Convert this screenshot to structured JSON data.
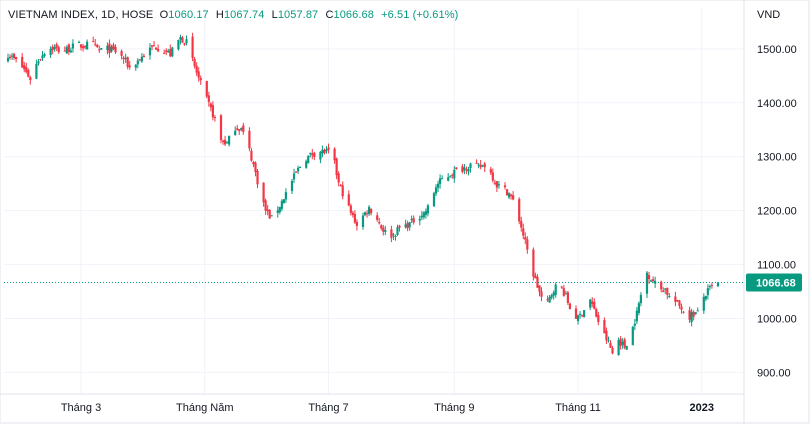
{
  "header": {
    "symbol_label": "VIETNAM INDEX, 1D, HOSE",
    "open_key": "O",
    "open_value": "1060.17",
    "high_key": "H",
    "high_value": "1067.74",
    "low_key": "L",
    "low_value": "1057.87",
    "close_key": "C",
    "close_value": "1066.68",
    "change_text": "+6.51 (+0.61%)"
  },
  "currency": "VND",
  "colors": {
    "up": "#089981",
    "down": "#f23645",
    "price_line": "#089981",
    "grid": "#f0f3fa",
    "axis": "#e0e3eb"
  },
  "last_price_label": "1066.68",
  "chart_data": {
    "type": "candlestick",
    "title": "",
    "xlabel": "",
    "ylabel": "",
    "ylim": [
      860,
      1535
    ],
    "x_range": [
      "2022-01-24",
      "2023-01-09"
    ],
    "y_ticks": [
      {
        "value": 1500,
        "label": "1500.00"
      },
      {
        "value": 1400,
        "label": "1400.00"
      },
      {
        "value": 1300,
        "label": "1300.00"
      },
      {
        "value": 1200,
        "label": "1200.00"
      },
      {
        "value": 1100,
        "label": "1100.00"
      },
      {
        "value": 1000,
        "label": "1000.00"
      },
      {
        "value": 900,
        "label": "900.00"
      }
    ],
    "x_ticks": [
      {
        "date": "2022-03-01",
        "label": "Tháng 3"
      },
      {
        "date": "2022-05-01",
        "label": "Tháng Năm"
      },
      {
        "date": "2022-07-01",
        "label": "Tháng 7"
      },
      {
        "date": "2022-09-01",
        "label": "Tháng 9"
      },
      {
        "date": "2022-11-01",
        "label": "Tháng 11"
      },
      {
        "date": "2023-01-01",
        "label": "2023",
        "bold": true
      }
    ],
    "grid": true,
    "close_anchors": [
      [
        "2022-01-24",
        1490
      ],
      [
        "2022-01-28",
        1478
      ],
      [
        "2022-02-01",
        1462
      ],
      [
        "2022-02-04",
        1445
      ],
      [
        "2022-02-08",
        1480
      ],
      [
        "2022-02-12",
        1500
      ],
      [
        "2022-02-16",
        1502
      ],
      [
        "2022-02-19",
        1495
      ],
      [
        "2022-02-23",
        1500
      ],
      [
        "2022-02-27",
        1508
      ],
      [
        "2022-03-02",
        1505
      ],
      [
        "2022-03-06",
        1510
      ],
      [
        "2022-03-10",
        1498
      ],
      [
        "2022-03-14",
        1500
      ],
      [
        "2022-03-18",
        1495
      ],
      [
        "2022-03-22",
        1482
      ],
      [
        "2022-03-25",
        1465
      ],
      [
        "2022-03-29",
        1478
      ],
      [
        "2022-04-02",
        1492
      ],
      [
        "2022-04-06",
        1505
      ],
      [
        "2022-04-10",
        1500
      ],
      [
        "2022-04-14",
        1490
      ],
      [
        "2022-04-17",
        1510
      ],
      [
        "2022-04-19",
        1520
      ],
      [
        "2022-04-22",
        1512
      ],
      [
        "2022-04-25",
        1478
      ],
      [
        "2022-04-28",
        1445
      ],
      [
        "2022-05-02",
        1405
      ],
      [
        "2022-05-06",
        1370
      ],
      [
        "2022-05-09",
        1330
      ],
      [
        "2022-05-12",
        1325
      ],
      [
        "2022-05-16",
        1355
      ],
      [
        "2022-05-19",
        1352
      ],
      [
        "2022-05-22",
        1325
      ],
      [
        "2022-05-25",
        1285
      ],
      [
        "2022-05-28",
        1240
      ],
      [
        "2022-05-31",
        1200
      ],
      [
        "2022-06-03",
        1185
      ],
      [
        "2022-06-07",
        1210
      ],
      [
        "2022-06-11",
        1240
      ],
      [
        "2022-06-15",
        1270
      ],
      [
        "2022-06-19",
        1295
      ],
      [
        "2022-06-23",
        1305
      ],
      [
        "2022-06-27",
        1310
      ],
      [
        "2022-07-01",
        1308
      ],
      [
        "2022-07-03",
        1305
      ],
      [
        "2022-07-06",
        1250
      ],
      [
        "2022-07-09",
        1225
      ],
      [
        "2022-07-12",
        1195
      ],
      [
        "2022-07-15",
        1175
      ],
      [
        "2022-07-18",
        1190
      ],
      [
        "2022-07-21",
        1205
      ],
      [
        "2022-07-24",
        1192
      ],
      [
        "2022-07-27",
        1170
      ],
      [
        "2022-07-30",
        1155
      ],
      [
        "2022-08-02",
        1155
      ],
      [
        "2022-08-05",
        1168
      ],
      [
        "2022-08-08",
        1172
      ],
      [
        "2022-08-11",
        1178
      ],
      [
        "2022-08-14",
        1190
      ],
      [
        "2022-08-17",
        1195
      ],
      [
        "2022-08-20",
        1210
      ],
      [
        "2022-08-23",
        1245
      ],
      [
        "2022-08-26",
        1258
      ],
      [
        "2022-08-29",
        1265
      ],
      [
        "2022-09-01",
        1272
      ],
      [
        "2022-09-05",
        1278
      ],
      [
        "2022-09-09",
        1285
      ],
      [
        "2022-09-13",
        1280
      ],
      [
        "2022-09-16",
        1285
      ],
      [
        "2022-09-19",
        1270
      ],
      [
        "2022-09-22",
        1248
      ],
      [
        "2022-09-25",
        1242
      ],
      [
        "2022-09-28",
        1232
      ],
      [
        "2022-10-01",
        1210
      ],
      [
        "2022-10-04",
        1170
      ],
      [
        "2022-10-07",
        1125
      ],
      [
        "2022-10-10",
        1082
      ],
      [
        "2022-10-12",
        1060
      ],
      [
        "2022-10-14",
        1038
      ],
      [
        "2022-10-17",
        1028
      ],
      [
        "2022-10-20",
        1055
      ],
      [
        "2022-10-23",
        1065
      ],
      [
        "2022-10-26",
        1040
      ],
      [
        "2022-10-29",
        1010
      ],
      [
        "2022-11-01",
        1000
      ],
      [
        "2022-11-04",
        1018
      ],
      [
        "2022-11-07",
        1035
      ],
      [
        "2022-11-10",
        1005
      ],
      [
        "2022-11-13",
        975
      ],
      [
        "2022-11-16",
        955
      ],
      [
        "2022-11-18",
        935
      ],
      [
        "2022-11-21",
        960
      ],
      [
        "2022-11-24",
        948
      ],
      [
        "2022-11-27",
        970
      ],
      [
        "2022-11-30",
        1010
      ],
      [
        "2022-12-03",
        1060
      ],
      [
        "2022-12-05",
        1085
      ],
      [
        "2022-12-08",
        1070
      ],
      [
        "2022-12-11",
        1055
      ],
      [
        "2022-12-14",
        1055
      ],
      [
        "2022-12-16",
        1040
      ],
      [
        "2022-12-19",
        1030
      ],
      [
        "2022-12-22",
        1020
      ],
      [
        "2022-12-25",
        1000
      ],
      [
        "2022-12-27",
        1008
      ],
      [
        "2022-12-30",
        1010
      ],
      [
        "2023-01-02",
        1040
      ],
      [
        "2023-01-05",
        1055
      ],
      [
        "2023-01-07",
        1060
      ],
      [
        "2023-01-09",
        1066.68
      ]
    ],
    "last_candle": {
      "date": "2023-01-09",
      "open": 1060.17,
      "high": 1067.74,
      "low": 1057.87,
      "close": 1066.68
    },
    "last_price": 1066.68
  }
}
